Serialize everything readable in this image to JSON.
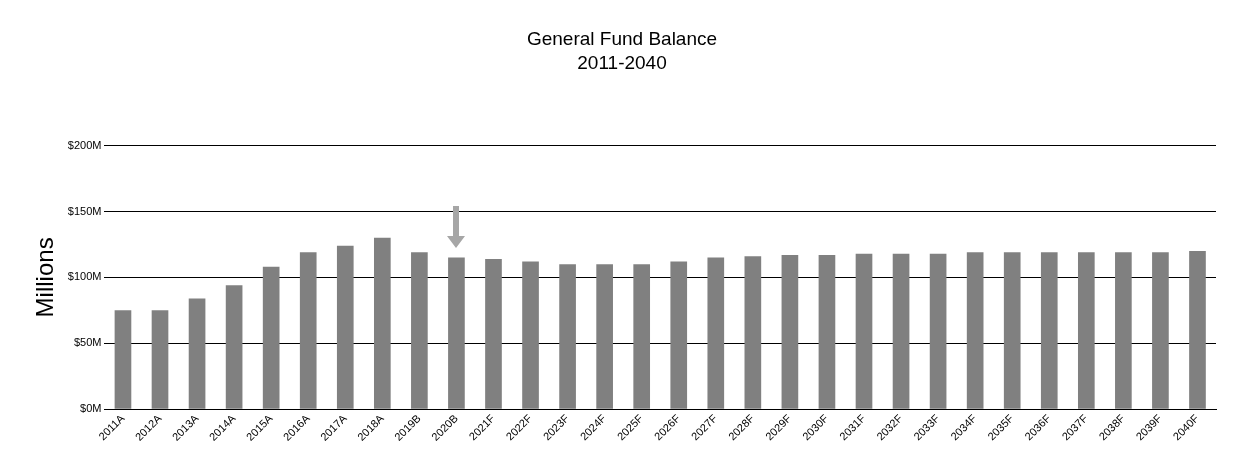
{
  "chart_data": {
    "type": "bar",
    "title": "General Fund Balance",
    "subtitle": "2011-2040",
    "ylabel": "Millions",
    "categories": [
      "2011A",
      "2012A",
      "2013A",
      "2014A",
      "2015A",
      "2016A",
      "2017A",
      "2018A",
      "2019B",
      "2020B",
      "2021F",
      "2022F",
      "2023F",
      "2024F",
      "2025F",
      "2026F",
      "2027F",
      "2028F",
      "2029F",
      "2030F",
      "2031F",
      "2032F",
      "2033F",
      "2034F",
      "2035F",
      "2036F",
      "2037F",
      "2038F",
      "2039F",
      "2040F"
    ],
    "values": [
      75,
      75,
      84,
      94,
      108,
      119,
      124,
      130,
      119,
      115,
      114,
      112,
      110,
      110,
      110,
      112,
      115,
      116,
      117,
      117,
      118,
      118,
      118,
      119,
      119,
      119,
      119,
      119,
      119,
      120
    ],
    "color": "#808080",
    "ylim": [
      0,
      200
    ],
    "yticks": [
      {
        "value": 0,
        "label": "$0M"
      },
      {
        "value": 50,
        "label": "$50M"
      },
      {
        "value": 100,
        "label": "$100M"
      },
      {
        "value": 150,
        "label": "$150M"
      },
      {
        "value": 200,
        "label": "$200M"
      }
    ],
    "grid": "y",
    "legend": false
  }
}
